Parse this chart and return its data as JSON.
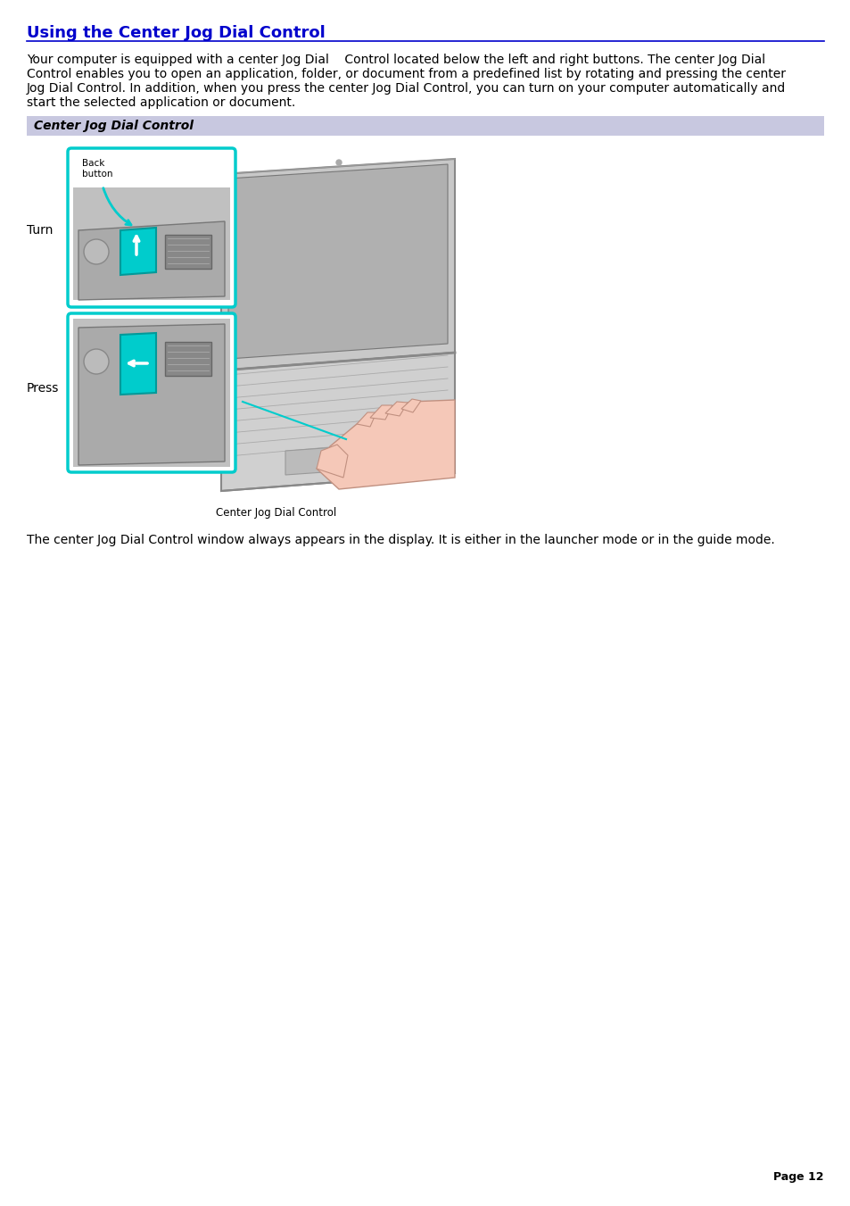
{
  "title": "Using the Center Jog Dial Control",
  "title_color": "#0000CC",
  "title_underline_color": "#0000CC",
  "bg_color": "#FFFFFF",
  "body_text_line1": "Your computer is equipped with a center Jog Dial    Control located below the left and right buttons. The center Jog Dial",
  "body_text_line2": "Control enables you to open an application, folder, or document from a predefined list by rotating and pressing the center",
  "body_text_line3": "Jog Dial Control. In addition, when you press the center Jog Dial Control, you can turn on your computer automatically and",
  "body_text_line4": "start the selected application or document.",
  "section_header": "Center Jog Dial Control",
  "section_header_bg": "#C8C8E0",
  "section_header_text_color": "#000000",
  "body_text2": "The center Jog Dial Control window always appears in the display. It is either in the launcher mode or in the guide mode.",
  "turn_label": "Turn",
  "press_label": "Press",
  "back_button_label": "Back\nbutton",
  "caption": "Center Jog Dial Control",
  "page_number": "Page 12",
  "font_size_title": 13,
  "font_size_body": 10,
  "font_size_section": 10,
  "font_size_labels": 10,
  "font_size_page": 9,
  "cyan_color": "#00CCCC",
  "gray_device": "#AAAAAA",
  "gray_inner": "#C0C0C0",
  "laptop_body_color": "#D0D0D0",
  "hand_color": "#F5C8B8"
}
